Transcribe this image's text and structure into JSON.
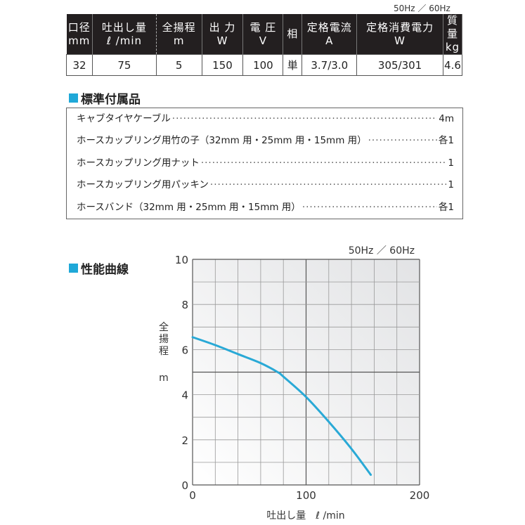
{
  "spec": {
    "freq_note": "50Hz ／ 60Hz",
    "headers": [
      [
        "口径",
        "mm"
      ],
      [
        "吐出し量",
        "ℓ /min"
      ],
      [
        "全揚程",
        "m"
      ],
      [
        "出 力",
        "W"
      ],
      [
        "電 圧",
        "V"
      ],
      [
        "相",
        ""
      ],
      [
        "定格電流",
        "A"
      ],
      [
        "定格消費電力",
        "W"
      ],
      [
        "質 量",
        "kg"
      ]
    ],
    "values": [
      "32",
      "75",
      "5",
      "150",
      "100",
      "単",
      "3.7/3.0",
      "305/301",
      "4.6"
    ]
  },
  "accessories": {
    "title": "標準付属品",
    "items": [
      {
        "name": "キャブタイヤケーブル",
        "qty": "4m"
      },
      {
        "name": "ホースカップリング用竹の子（32mm 用・25mm 用・15mm 用）",
        "qty": "各1"
      },
      {
        "name": "ホースカップリング用ナット",
        "qty": "1"
      },
      {
        "name": "ホースカップリング用パッキン",
        "qty": "1"
      },
      {
        "name": "ホースバンド（32mm 用・25mm 用・15mm 用）",
        "qty": "各1"
      }
    ]
  },
  "performance": {
    "title": "性能曲線"
  },
  "chart_data": {
    "type": "line",
    "note": "50Hz ／ 60Hz",
    "xlabel": "吐出し量　ℓ /min",
    "ylabel": [
      "全",
      "揚",
      "程",
      "m"
    ],
    "xlim": [
      0,
      200
    ],
    "ylim": [
      0,
      10
    ],
    "xticks": [
      "0",
      "100",
      "200"
    ],
    "yticks": [
      "0",
      "2",
      "4",
      "6",
      "8",
      "10"
    ],
    "grid": true,
    "color": "#29a9d6",
    "x": [
      0,
      20,
      40,
      60,
      75,
      80,
      100,
      120,
      140,
      157
    ],
    "y": [
      6.55,
      6.2,
      5.8,
      5.4,
      5.0,
      4.8,
      3.9,
      2.8,
      1.6,
      0.45
    ]
  }
}
